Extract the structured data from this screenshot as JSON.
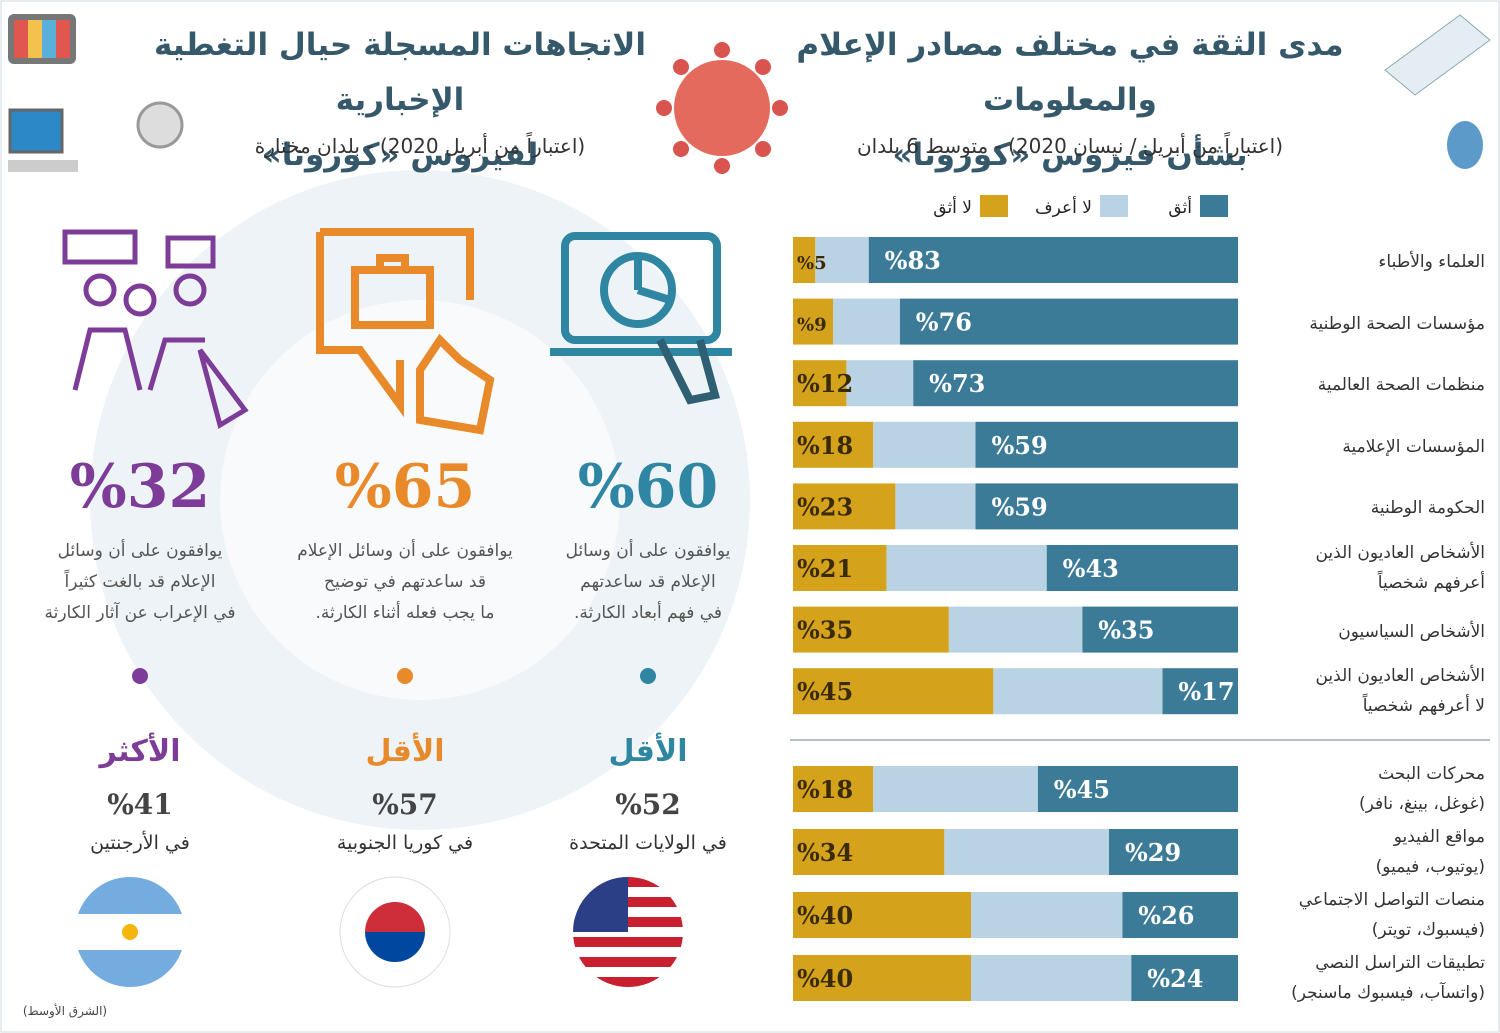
{
  "header": {
    "right_title": "مدى الثقة في مختلف مصادر الإعلام والمعلومات\nبشأن فيروس «كورونا»",
    "right_subtitle": "(اعتباراً من أبريل / نيسان 2020) - متوسط 6 بلدان",
    "left_title": "الاتجاهات المسجلة حيال التغطية الإخبارية\nلفيروس «كورونا»",
    "left_subtitle": "(اعتباراً من أبريل 2020) - بلدان مختارة"
  },
  "chart_data": {
    "type": "bar",
    "orientation": "horizontal",
    "stacked": true,
    "categories": [
      "العلماء والأطباء",
      "مؤسسات الصحة الوطنية",
      "منظمات الصحة العالمية",
      "المؤسسات الإعلامية",
      "الحكومة الوطنية",
      "الأشخاص العاديون الذين\nأعرفهم شخصياً",
      "الأشخاص السياسيون",
      "الأشخاص العاديون الذين\nلا أعرفهم شخصياً",
      "محركات البحث\n(غوغل، بينغ، نافر)",
      "مواقع الفيديو\n(يوتيوب، فيميو)",
      "منصات التواصل الاجتماعي\n(فيسبوك، تويتر)",
      "تطبيقات التراسل النصي\n(واتسآب، فيسبوك ماسنجر)"
    ],
    "series": [
      {
        "name": "أثق",
        "color": "#3b7b98",
        "values": [
          83,
          76,
          73,
          59,
          59,
          43,
          35,
          17,
          45,
          29,
          26,
          24
        ],
        "value_labels": [
          "%83",
          "%76",
          "%73",
          "%59",
          "%59",
          "%43",
          "%35",
          "%17",
          "%45",
          "%29",
          "%26",
          "%24"
        ]
      },
      {
        "name": "لا أعرف",
        "color": "#b9d3e4",
        "values": [
          12,
          15,
          15,
          23,
          18,
          36,
          30,
          38,
          37,
          37,
          34,
          36
        ]
      },
      {
        "name": "لا أثق",
        "color": "#d5a21c",
        "values": [
          5,
          9,
          12,
          18,
          23,
          21,
          35,
          45,
          18,
          34,
          40,
          40
        ],
        "value_labels": [
          "%5",
          "%9",
          "%12",
          "%18",
          "%23",
          "%21",
          "%35",
          "%45",
          "%18",
          "%34",
          "%40",
          "%40"
        ]
      }
    ]
  },
  "stats": [
    {
      "value": "%60",
      "text": "يوافقون على أن وسائل\nالإعلام قد ساعدتهم\nفي فهم أبعاد الكارثة.",
      "rank": "الأقل",
      "country_value": "%52",
      "country": "في الولايات المتحدة",
      "color": "#2f86a3"
    },
    {
      "value": "%65",
      "text": "يوافقون على أن وسائل الإعلام\nقد ساعدتهم في توضيح\nما يجب فعله أثناء الكارثة.",
      "rank": "الأقل",
      "country_value": "%57",
      "country": "في كوريا الجنوبية",
      "color": "#e8892a"
    },
    {
      "value": "%32",
      "text": "يوافقون على أن وسائل\nالإعلام قد بالغت كثيراً\nفي الإعراب عن آثار الكارثة",
      "rank": "الأكثر",
      "country_value": "%41",
      "country": "في الأرجنتين",
      "color": "#7c3c97"
    }
  ],
  "source": "(الشرق الأوسط)"
}
